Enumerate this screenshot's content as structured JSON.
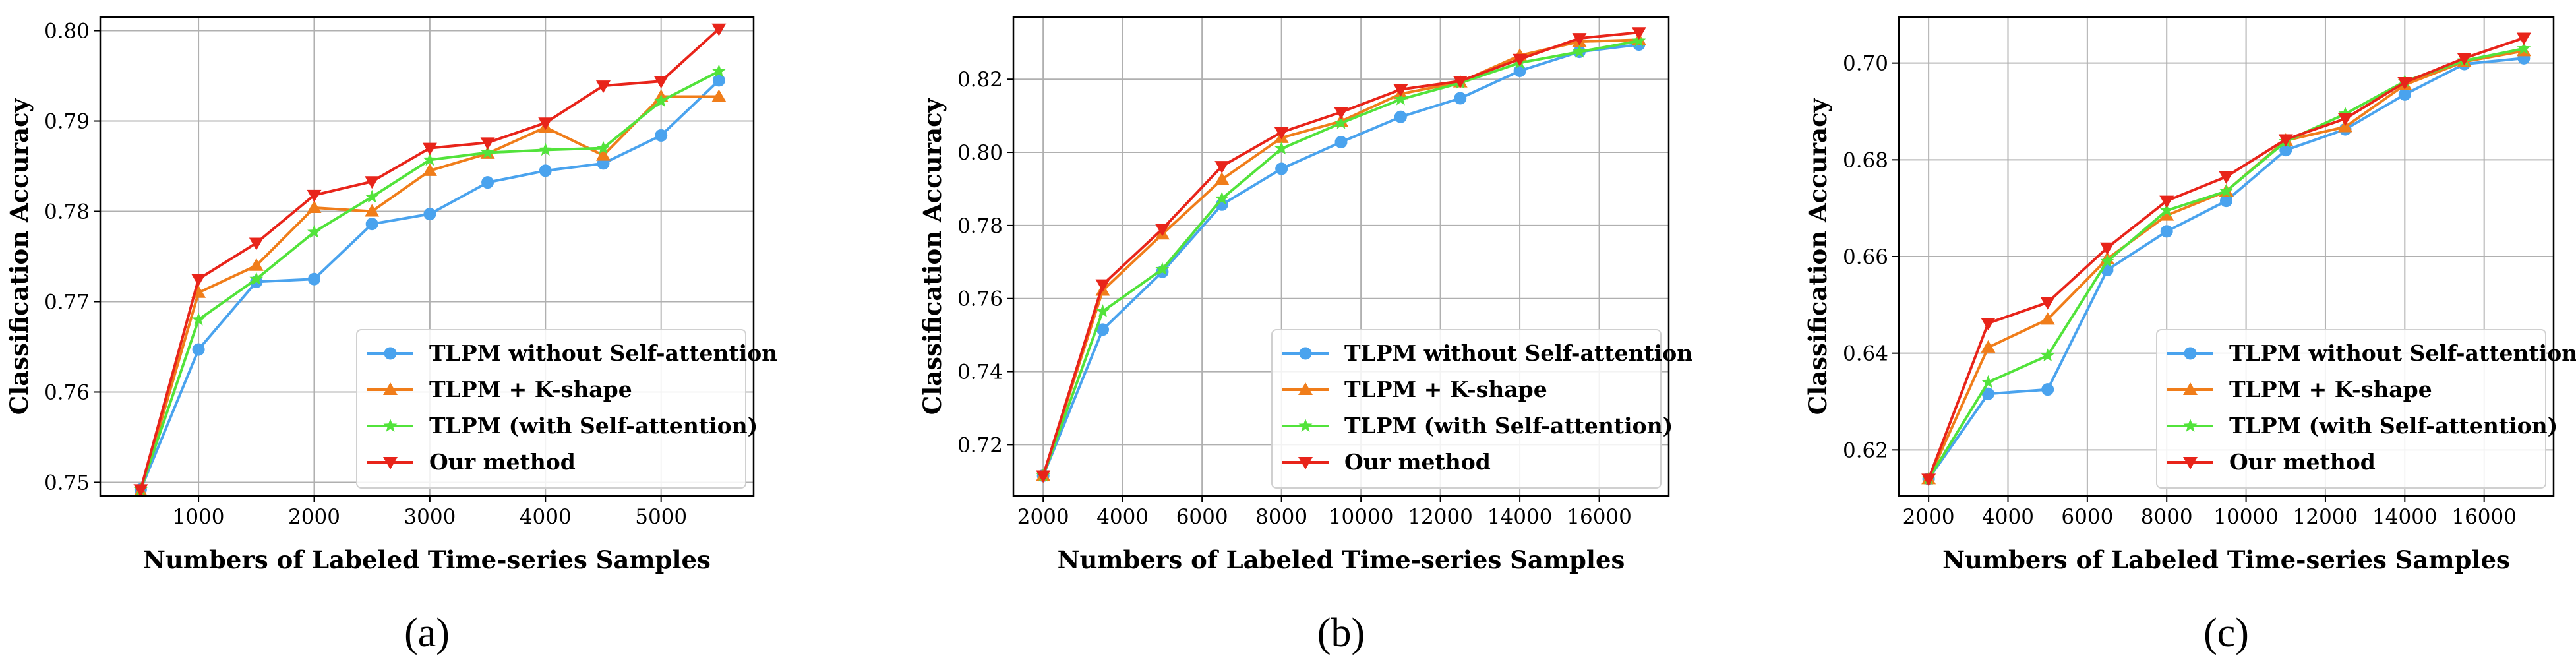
{
  "figure": {
    "legend_labels": [
      "TLPM without Self-attention",
      "TLPM + K-shape",
      "TLPM (with Self-attention)",
      "Our method"
    ],
    "series_colors": [
      "#4aa3ee",
      "#f07d1a",
      "#52e33b",
      "#e8241a"
    ],
    "series_markers": [
      "circle",
      "triangle-up",
      "star",
      "triangle-down"
    ]
  },
  "chart_data": [
    {
      "type": "line",
      "panel_label": "(a)",
      "xlabel": "Numbers of Labeled Time-series Samples",
      "ylabel": "Classification Accuracy",
      "xlim": [
        150,
        5800
      ],
      "ylim": [
        0.7485,
        0.8015
      ],
      "xticks": [
        1000,
        2000,
        3000,
        4000,
        5000
      ],
      "yticks": [
        0.75,
        0.76,
        0.77,
        0.78,
        0.79,
        0.8
      ],
      "ytick_labels": [
        "0.75",
        "0.76",
        "0.77",
        "0.78",
        "0.79",
        "0.80"
      ],
      "grid": true,
      "legend_location": "lower-right",
      "x": [
        500,
        1000,
        1500,
        2000,
        2500,
        3000,
        3500,
        4000,
        4500,
        5000,
        5500
      ],
      "series": [
        {
          "name": "TLPM without Self-attention",
          "values": [
            0.7492,
            0.7647,
            0.7722,
            0.7725,
            0.7786,
            0.7797,
            0.7832,
            0.7845,
            0.7853,
            0.7884,
            0.7945
          ]
        },
        {
          "name": "TLPM + K-shape",
          "values": [
            0.749,
            0.771,
            0.774,
            0.7804,
            0.78,
            0.7845,
            0.7864,
            0.7893,
            0.7862,
            0.7927,
            0.7927
          ]
        },
        {
          "name": "TLPM (with Self-attention)",
          "values": [
            0.7492,
            0.768,
            0.7725,
            0.7777,
            0.7816,
            0.7857,
            0.7865,
            0.7868,
            0.787,
            0.7922,
            0.7955
          ]
        },
        {
          "name": "Our method",
          "values": [
            0.7492,
            0.7725,
            0.7765,
            0.7818,
            0.7833,
            0.787,
            0.7876,
            0.7898,
            0.7939,
            0.7944,
            0.8002
          ]
        }
      ]
    },
    {
      "type": "line",
      "panel_label": "(b)",
      "xlabel": "Numbers of Labeled Time-series Samples",
      "ylabel": "Classification Accuracy",
      "xlim": [
        1250,
        17750
      ],
      "ylim": [
        0.706,
        0.837
      ],
      "xticks": [
        2000,
        4000,
        6000,
        8000,
        10000,
        12000,
        14000,
        16000
      ],
      "yticks": [
        0.72,
        0.74,
        0.76,
        0.78,
        0.8,
        0.82
      ],
      "ytick_labels": [
        "0.72",
        "0.74",
        "0.76",
        "0.78",
        "0.80",
        "0.82"
      ],
      "grid": true,
      "legend_location": "lower-right",
      "x": [
        2000,
        3500,
        5000,
        6500,
        8000,
        9500,
        11000,
        12500,
        14000,
        15500,
        17000
      ],
      "series": [
        {
          "name": "TLPM without Self-attention",
          "values": [
            0.7115,
            0.7515,
            0.7673,
            0.7857,
            0.7955,
            0.8028,
            0.8097,
            0.8148,
            0.8223,
            0.8275,
            0.8295
          ]
        },
        {
          "name": "TLPM + K-shape",
          "values": [
            0.7115,
            0.7622,
            0.7776,
            0.7926,
            0.804,
            0.8085,
            0.816,
            0.8192,
            0.8265,
            0.8303,
            0.8308
          ]
        },
        {
          "name": "TLPM (with Self-attention)",
          "values": [
            0.7115,
            0.7565,
            0.768,
            0.7873,
            0.801,
            0.808,
            0.8145,
            0.819,
            0.8245,
            0.8275,
            0.8305
          ]
        },
        {
          "name": "Our method",
          "values": [
            0.7115,
            0.7638,
            0.779,
            0.7962,
            0.8055,
            0.811,
            0.8172,
            0.8195,
            0.8255,
            0.8312,
            0.8328
          ]
        }
      ]
    },
    {
      "type": "line",
      "panel_label": "(c)",
      "xlabel": "Numbers of Labeled Time-series Samples",
      "ylabel": "Classification Accuracy",
      "xlim": [
        1250,
        17750
      ],
      "ylim": [
        0.6105,
        0.7095
      ],
      "xticks": [
        2000,
        4000,
        6000,
        8000,
        10000,
        12000,
        14000,
        16000
      ],
      "yticks": [
        0.62,
        0.64,
        0.66,
        0.68,
        0.7
      ],
      "ytick_labels": [
        "0.62",
        "0.64",
        "0.66",
        "0.68",
        "0.70"
      ],
      "grid": true,
      "legend_location": "lower-right",
      "x": [
        2000,
        3500,
        5000,
        6500,
        8000,
        9500,
        11000,
        12500,
        14000,
        15500,
        17000
      ],
      "series": [
        {
          "name": "TLPM without Self-attention",
          "values": [
            0.614,
            0.6316,
            0.6325,
            0.6572,
            0.6652,
            0.6715,
            0.682,
            0.6863,
            0.6935,
            0.6998,
            0.701
          ]
        },
        {
          "name": "TLPM + K-shape",
          "values": [
            0.614,
            0.6412,
            0.647,
            0.6595,
            0.6685,
            0.6735,
            0.684,
            0.6868,
            0.6955,
            0.7003,
            0.7025
          ]
        },
        {
          "name": "TLPM (with Self-attention)",
          "values": [
            0.614,
            0.634,
            0.6395,
            0.659,
            0.6695,
            0.6735,
            0.6838,
            0.6895,
            0.6962,
            0.7005,
            0.703
          ]
        },
        {
          "name": "Our method",
          "values": [
            0.614,
            0.6462,
            0.6505,
            0.6618,
            0.6715,
            0.6765,
            0.6842,
            0.6885,
            0.696,
            0.701,
            0.7052
          ]
        }
      ]
    }
  ]
}
